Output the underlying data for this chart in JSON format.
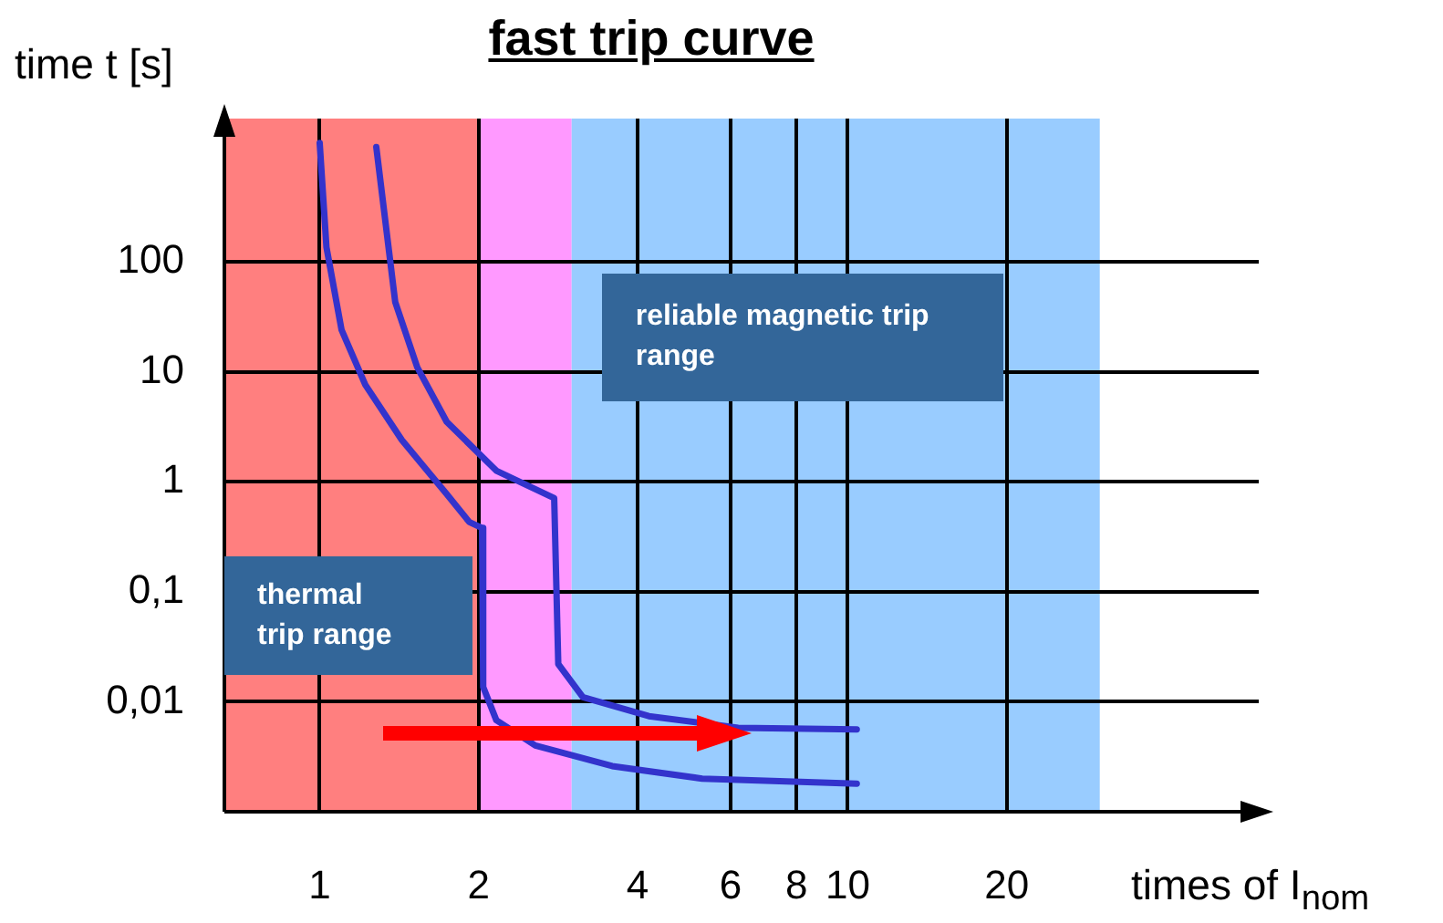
{
  "chart_data": {
    "type": "line",
    "title": "fast trip curve",
    "xlabel": "times of I$_{nom}$",
    "ylabel": "time t [s]",
    "log": "xy",
    "xlim": [
      0.66,
      60
    ],
    "xticks": [
      1,
      2,
      4,
      6,
      8,
      10,
      20
    ],
    "ylim": [
      0.001,
      2000
    ],
    "yticks": [
      {
        "value": 0.01,
        "label": "0,01"
      },
      {
        "value": 0.1,
        "label": "0,1"
      },
      1,
      10,
      100
    ],
    "grid": true,
    "legend": false,
    "marker": "none",
    "line_style": "solid",
    "bands": [
      {
        "axis": "x",
        "from": 0.66,
        "to": 2,
        "label": "thermal trip range",
        "color": "#ff7f7f"
      },
      {
        "axis": "x",
        "from": 2,
        "to": 3,
        "color": "#ff99ff"
      },
      {
        "axis": "x",
        "from": 3,
        "to": 30,
        "label": "reliable magnetic trip range",
        "color": "#99ccff"
      }
    ],
    "series": [
      {
        "color": "#3333cc",
        "x": [
          1,
          1.03,
          1.1,
          1.22,
          1.43,
          1.74,
          1.92,
          2.03,
          2.04,
          2.16,
          2.56,
          3.58,
          5.3,
          10.4
        ],
        "values": [
          1200,
          135,
          24,
          7.6,
          2.4,
          0.77,
          0.43,
          0.38,
          0.0136,
          0.0068,
          0.004,
          0.0026,
          0.002,
          0.0018
        ]
      },
      {
        "color": "#3333cc",
        "x": [
          1.28,
          1.39,
          1.53,
          1.74,
          2.16,
          2.78,
          2.83,
          3.15,
          4.2,
          6.2,
          10.4
        ],
        "values": [
          1100,
          43,
          11,
          3.5,
          1.26,
          0.71,
          0.022,
          0.011,
          0.0074,
          0.0058,
          0.0056
        ]
      }
    ]
  }
}
